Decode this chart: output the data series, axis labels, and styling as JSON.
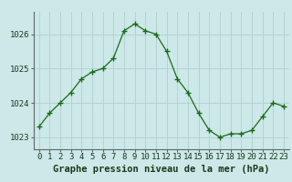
{
  "hours": [
    0,
    1,
    2,
    3,
    4,
    5,
    6,
    7,
    8,
    9,
    10,
    11,
    12,
    13,
    14,
    15,
    16,
    17,
    18,
    19,
    20,
    21,
    22,
    23
  ],
  "pressure": [
    1023.3,
    1023.7,
    1024.0,
    1024.3,
    1024.7,
    1024.9,
    1025.0,
    1025.3,
    1026.1,
    1026.3,
    1026.1,
    1026.0,
    1025.5,
    1024.7,
    1024.3,
    1023.7,
    1023.2,
    1023.0,
    1023.1,
    1023.1,
    1023.2,
    1023.6,
    1024.0,
    1023.9
  ],
  "line_color": "#1a6b1a",
  "marker": "+",
  "bg_color": "#cce8e8",
  "grid_color": "#b0d0d0",
  "xlabel": "Graphe pression niveau de la mer (hPa)",
  "xlabel_fontsize": 7.5,
  "tick_fontsize": 6.5,
  "ylim": [
    1022.65,
    1026.65
  ],
  "yticks": [
    1023,
    1024,
    1025,
    1026
  ],
  "xticks": [
    0,
    1,
    2,
    3,
    4,
    5,
    6,
    7,
    8,
    9,
    10,
    11,
    12,
    13,
    14,
    15,
    16,
    17,
    18,
    19,
    20,
    21,
    22,
    23
  ]
}
